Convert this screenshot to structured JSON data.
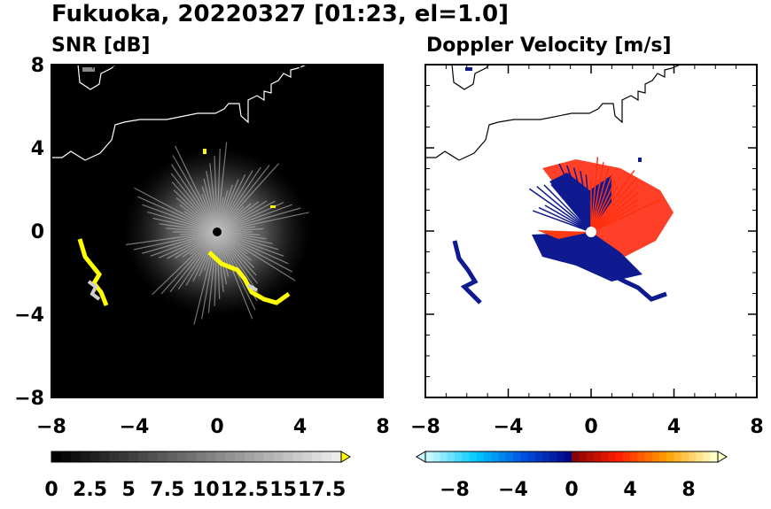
{
  "title": "Fukuoka, 20220327 [01:23, el=1.0]",
  "chart_data": [
    {
      "type": "heatmap",
      "title": "SNR [dB]",
      "xlim": [
        -8,
        8
      ],
      "ylim": [
        -8,
        8
      ],
      "xticks": [
        "−8",
        "−4",
        "0",
        "4",
        "8"
      ],
      "yticks": [
        "8",
        "4",
        "0",
        "−4",
        "−8"
      ],
      "background": "#000000",
      "colorbar": {
        "min": 0,
        "max": 18.75,
        "ticks": [
          "0",
          "2.5",
          "5",
          "7.5",
          "10",
          "12.5",
          "15",
          "17.5"
        ],
        "colors": [
          "#000000",
          "#ffffff"
        ],
        "extend": "max",
        "extend_color": "#ffff00"
      }
    },
    {
      "type": "heatmap",
      "title": "Doppler Velocity [m/s]",
      "xlim": [
        -8,
        8
      ],
      "ylim": [
        -8,
        8
      ],
      "xticks": [
        "−8",
        "−4",
        "0",
        "4",
        "8"
      ],
      "yticks": [],
      "background": "#ffffff",
      "colorbar": {
        "min": -10,
        "max": 10,
        "ticks": [
          "−8",
          "−4",
          "0",
          "4",
          "8"
        ],
        "negative_colors": [
          "#c8f8ff",
          "#00c8ff",
          "#0050e0",
          "#000080"
        ],
        "positive_colors": [
          "#800000",
          "#ff2000",
          "#ffa000",
          "#ffffc8"
        ],
        "extend": "both"
      }
    }
  ]
}
